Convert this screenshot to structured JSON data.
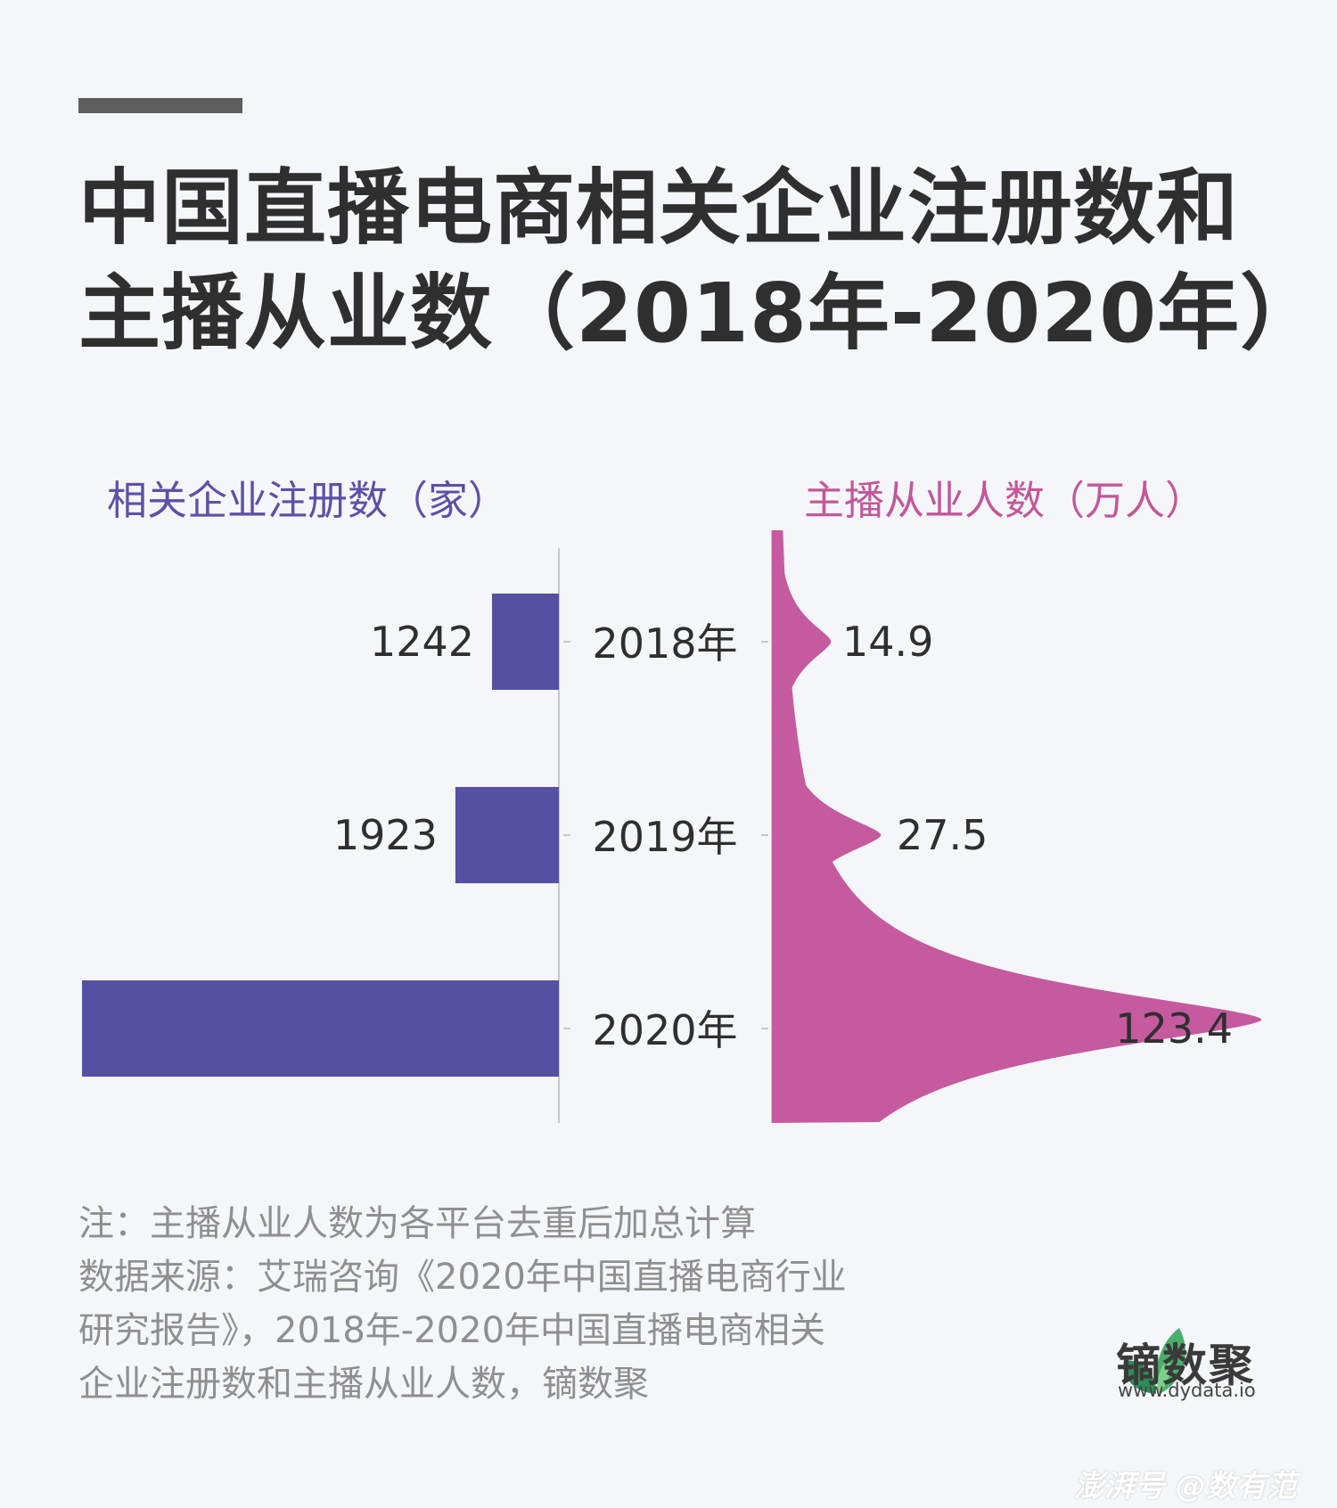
{
  "title": {
    "line1": "中国直播电商相关企业注册数和",
    "line2": "主播从业数（2018年-2020年）"
  },
  "colors": {
    "left_series": "#5550a2",
    "right_series": "#c65a9f",
    "axis": "#c8c8cc"
  },
  "chart_data": {
    "type": "bar",
    "categories": [
      "2018年",
      "2019年",
      "2020年"
    ],
    "series": [
      {
        "name": "相关企业注册数（家）",
        "values": [
          1242,
          1923,
          8862
        ]
      },
      {
        "name": "主播从业人数（万人）",
        "values": [
          14.9,
          27.5,
          123.4
        ]
      }
    ],
    "left_label": "相关企业注册数（家）",
    "right_label": "主播从业人数（万人）",
    "value_labels_left": [
      "1242",
      "1923",
      "8862"
    ],
    "value_labels_right": [
      "14.9",
      "27.5",
      "123.4"
    ],
    "layout": "mirrored"
  },
  "note": {
    "line1": "注：主播从业人数为各平台去重后加总计算",
    "line2": "数据来源：艾瑞咨询《2020年中国直播电商行业",
    "line3": "研究报告》，2018年-2020年中国直播电商相关",
    "line4": "企业注册数和主播从业人数，镝数聚"
  },
  "brand": {
    "name": "镝数聚",
    "url": "www.dydata.io"
  },
  "watermark": "澎湃号 @数有范"
}
